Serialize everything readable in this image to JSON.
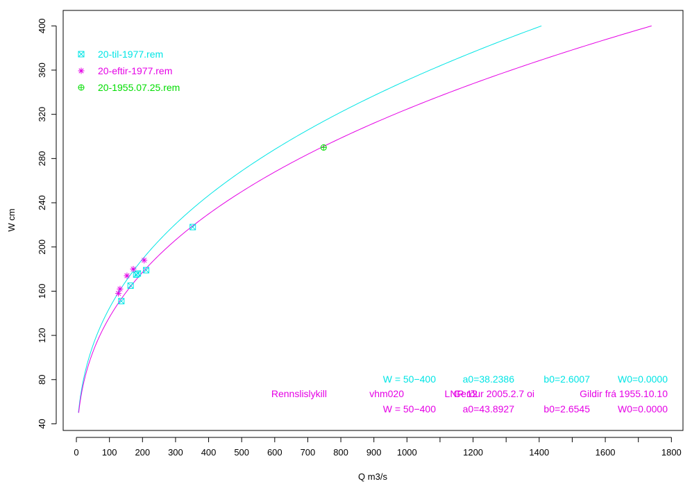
{
  "chart_data": {
    "type": "line",
    "xlabel": "Q m3/s",
    "ylabel": "W cm",
    "xlim": [
      -40,
      1835
    ],
    "ylim": [
      34,
      414
    ],
    "x_ticks": [
      0,
      100,
      200,
      300,
      400,
      500,
      600,
      700,
      800,
      900,
      1000,
      1200,
      1400,
      1600,
      1800
    ],
    "x_minor_ticks": [
      1100,
      1300,
      1500,
      1700
    ],
    "y_ticks": [
      40,
      80,
      120,
      160,
      200,
      240,
      280,
      320,
      360,
      400
    ],
    "grid": false,
    "legend_position": "top-left",
    "series": [
      {
        "name": "20-til-1977.rem",
        "color": "#00e5e5",
        "marker": "boxed-x",
        "points": [
          {
            "x": 136,
            "y": 151
          },
          {
            "x": 164,
            "y": 165
          },
          {
            "x": 181,
            "y": 175
          },
          {
            "x": 186,
            "y": 176
          },
          {
            "x": 211,
            "y": 179
          },
          {
            "x": 352,
            "y": 218
          }
        ]
      },
      {
        "name": "20-eftir-1977.rem",
        "color": "#e500e5",
        "marker": "asterisk",
        "points": [
          {
            "x": 127,
            "y": 158
          },
          {
            "x": 132,
            "y": 162
          },
          {
            "x": 153,
            "y": 174
          },
          {
            "x": 172,
            "y": 180
          },
          {
            "x": 205,
            "y": 188
          }
        ]
      },
      {
        "name": "20-1955.07.25.rem",
        "color": "#00dd00",
        "marker": "circle-plus",
        "points": [
          {
            "x": 748,
            "y": 290
          }
        ]
      }
    ],
    "curves": [
      {
        "color": "#00e5e5",
        "a0": 38.2386,
        "b0": 2.6007,
        "W0": 0.0,
        "w_min": 50,
        "w_max": 400
      },
      {
        "color": "#e500e5",
        "a0": 43.8927,
        "b0": 2.6545,
        "W0": 0.0,
        "w_min": 50,
        "w_max": 400
      }
    ],
    "annotations": [
      {
        "color": "#00e5e5",
        "parts": [
          "W = 50−400",
          "a0=38.2386",
          "b0=2.6007",
          "W0=0.0000"
        ]
      },
      {
        "color": "#e500e5",
        "parts": [
          "Rennslislykill",
          "vhm020",
          "LNR 12",
          "Gerður 2005.2.7 oi",
          "Gildir frá 1955.10.10"
        ]
      },
      {
        "color": "#e500e5",
        "parts": [
          "W = 50−400",
          "a0=43.8927",
          "b0=2.6545",
          "W0=0.0000"
        ]
      }
    ]
  }
}
